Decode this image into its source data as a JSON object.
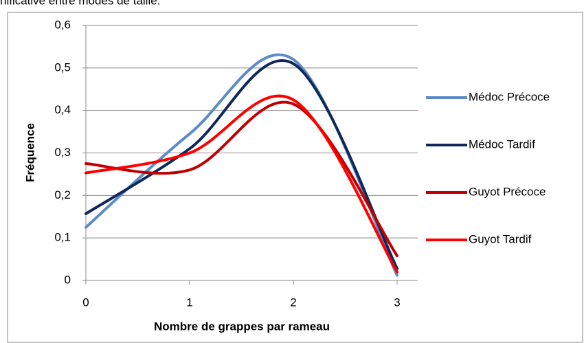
{
  "caption_fragment": "nificative entre modes de taille.",
  "chart_data": {
    "type": "line",
    "smooth": true,
    "x_label": "Nombre de grappes par rameau",
    "y_label": "Fréquence",
    "x": [
      0,
      1,
      2,
      3
    ],
    "xlim": [
      0,
      3
    ],
    "xticks": [
      0,
      1,
      2,
      3
    ],
    "ylim": [
      0,
      0.6
    ],
    "yticks": [
      {
        "value": 0,
        "label": "0"
      },
      {
        "value": 0.1,
        "label": "0,1"
      },
      {
        "value": 0.2,
        "label": "0,2"
      },
      {
        "value": 0.3,
        "label": "0,3"
      },
      {
        "value": 0.4,
        "label": "0,4"
      },
      {
        "value": 0.5,
        "label": "0,5"
      },
      {
        "value": 0.6,
        "label": "0,6"
      }
    ],
    "grid": true,
    "legend": "right",
    "series": [
      {
        "name": "Médoc Précoce",
        "color": "#5b8bc8",
        "values": [
          0.125,
          0.345,
          0.52,
          0.012
        ]
      },
      {
        "name": "Médoc Tardif",
        "color": "#0f2859",
        "values": [
          0.157,
          0.31,
          0.51,
          0.028
        ]
      },
      {
        "name": "Guyot Précoce",
        "color": "#c00000",
        "values": [
          0.275,
          0.26,
          0.415,
          0.058
        ]
      },
      {
        "name": "Guyot Tardif",
        "color": "#ff0000",
        "values": [
          0.253,
          0.3,
          0.425,
          0.02
        ]
      }
    ]
  }
}
